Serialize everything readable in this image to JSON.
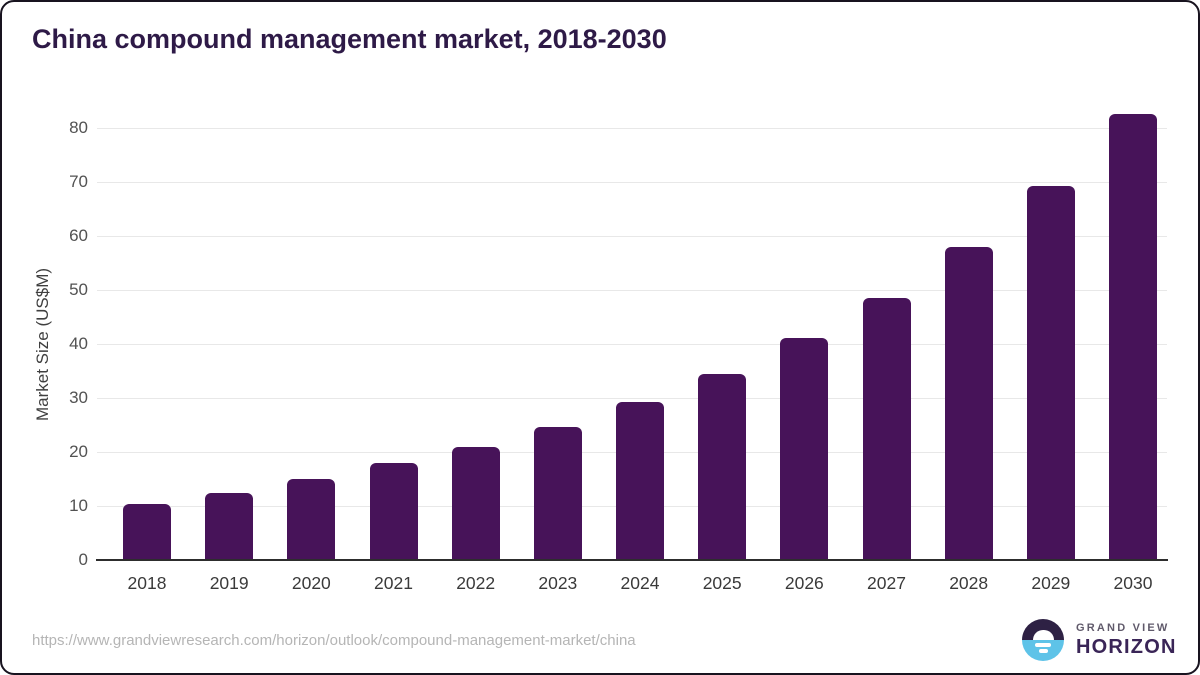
{
  "title": "China compound management market, 2018-2030",
  "source_url": "https://www.grandviewresearch.com/horizon/outlook/compound-management-market/china",
  "logo": {
    "line1": "GRAND VIEW",
    "line2": "HORIZON"
  },
  "colors": {
    "bar": "#471359",
    "title": "#2e1a47",
    "gridline": "#e8e8e8",
    "axis_line": "#2d2d2d",
    "tick_label": "#3a3a3a",
    "url_text": "#b5b5b5",
    "logo_dark": "#2e2144",
    "logo_blue": "#5ec3e8"
  },
  "chart_data": {
    "type": "bar",
    "title": "China compound management market, 2018-2030",
    "categories": [
      "2018",
      "2019",
      "2020",
      "2021",
      "2022",
      "2023",
      "2024",
      "2025",
      "2026",
      "2027",
      "2028",
      "2029",
      "2030"
    ],
    "values": [
      10.4,
      12.4,
      15.0,
      17.9,
      20.9,
      24.6,
      29.2,
      34.5,
      41.1,
      48.6,
      57.9,
      69.2,
      82.6
    ],
    "xlabel": "",
    "ylabel": "Market Size (US$M)",
    "ylim": [
      0,
      80
    ],
    "yticks": [
      0,
      10,
      20,
      30,
      40,
      50,
      60,
      70,
      80
    ],
    "grid": "horizontal",
    "legend": "none",
    "bar_color": "#471359"
  }
}
